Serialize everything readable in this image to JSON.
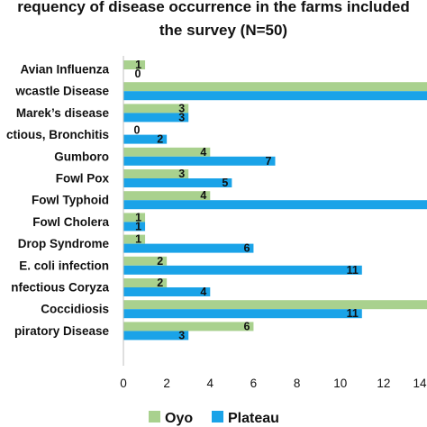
{
  "chart_data": {
    "type": "bar",
    "orientation": "horizontal",
    "title_lines": [
      "requency of disease occurrence in the farms included",
      "the survey (N=50)"
    ],
    "categories": [
      "Avian Influenza",
      "wcastle Disease",
      "Marek’s disease",
      "ctious, Bronchitis",
      "Gumboro",
      "Fowl Pox",
      "Fowl Typhoid",
      "Fowl Cholera",
      "Drop Syndrome",
      "E. coli infection",
      "nfectious Coryza",
      "Coccidiosis",
      "piratory Disease"
    ],
    "series": [
      {
        "name": "Oyo",
        "color": "#a9d18e",
        "values": [
          1,
          null,
          3,
          0,
          4,
          3,
          4,
          1,
          1,
          2,
          2,
          null,
          6
        ],
        "labels": [
          "1",
          "",
          "3",
          "0",
          "4",
          "3",
          "4",
          "1",
          "1",
          "2",
          "2",
          "",
          "6"
        ]
      },
      {
        "name": "Plateau",
        "color": "#1aa3e8",
        "values": [
          0,
          null,
          3,
          2,
          7,
          5,
          null,
          1,
          6,
          11,
          4,
          11,
          3
        ],
        "labels": [
          "0",
          "",
          "3",
          "2",
          "7",
          "5",
          "",
          "1",
          "6",
          "11",
          "4",
          "11",
          "3"
        ]
      }
    ],
    "xlim": [
      0,
      14
    ],
    "x_ticks": [
      "0",
      "2",
      "4",
      "6",
      "8",
      "10",
      "12",
      "14"
    ],
    "grid": false,
    "legend_position": "bottom"
  }
}
